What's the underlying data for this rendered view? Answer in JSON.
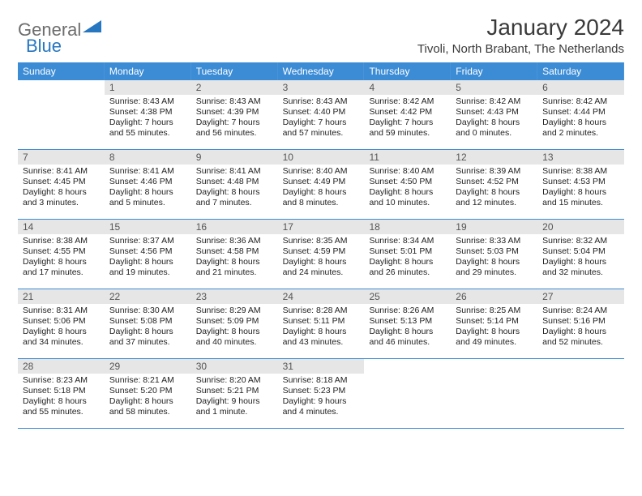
{
  "logo": {
    "general": "General",
    "blue": "Blue"
  },
  "title": "January 2024",
  "subtitle": "Tivoli, North Brabant, The Netherlands",
  "colors": {
    "header_bg": "#3c8cd5",
    "header_text": "#ffffff",
    "daynum_bg": "#e6e6e6",
    "daynum_text": "#555555",
    "body_text": "#222222",
    "cell_border": "#3c8cd5",
    "title_text": "#3a3a3a",
    "logo_gray": "#6d6d6d",
    "logo_blue": "#2676c0",
    "page_bg": "#ffffff"
  },
  "dayNames": [
    "Sunday",
    "Monday",
    "Tuesday",
    "Wednesday",
    "Thursday",
    "Friday",
    "Saturday"
  ],
  "weeks": [
    [
      null,
      {
        "n": "1",
        "sunrise": "8:43 AM",
        "sunset": "4:38 PM",
        "daylight": "7 hours and 55 minutes."
      },
      {
        "n": "2",
        "sunrise": "8:43 AM",
        "sunset": "4:39 PM",
        "daylight": "7 hours and 56 minutes."
      },
      {
        "n": "3",
        "sunrise": "8:43 AM",
        "sunset": "4:40 PM",
        "daylight": "7 hours and 57 minutes."
      },
      {
        "n": "4",
        "sunrise": "8:42 AM",
        "sunset": "4:42 PM",
        "daylight": "7 hours and 59 minutes."
      },
      {
        "n": "5",
        "sunrise": "8:42 AM",
        "sunset": "4:43 PM",
        "daylight": "8 hours and 0 minutes."
      },
      {
        "n": "6",
        "sunrise": "8:42 AM",
        "sunset": "4:44 PM",
        "daylight": "8 hours and 2 minutes."
      }
    ],
    [
      {
        "n": "7",
        "sunrise": "8:41 AM",
        "sunset": "4:45 PM",
        "daylight": "8 hours and 3 minutes."
      },
      {
        "n": "8",
        "sunrise": "8:41 AM",
        "sunset": "4:46 PM",
        "daylight": "8 hours and 5 minutes."
      },
      {
        "n": "9",
        "sunrise": "8:41 AM",
        "sunset": "4:48 PM",
        "daylight": "8 hours and 7 minutes."
      },
      {
        "n": "10",
        "sunrise": "8:40 AM",
        "sunset": "4:49 PM",
        "daylight": "8 hours and 8 minutes."
      },
      {
        "n": "11",
        "sunrise": "8:40 AM",
        "sunset": "4:50 PM",
        "daylight": "8 hours and 10 minutes."
      },
      {
        "n": "12",
        "sunrise": "8:39 AM",
        "sunset": "4:52 PM",
        "daylight": "8 hours and 12 minutes."
      },
      {
        "n": "13",
        "sunrise": "8:38 AM",
        "sunset": "4:53 PM",
        "daylight": "8 hours and 15 minutes."
      }
    ],
    [
      {
        "n": "14",
        "sunrise": "8:38 AM",
        "sunset": "4:55 PM",
        "daylight": "8 hours and 17 minutes."
      },
      {
        "n": "15",
        "sunrise": "8:37 AM",
        "sunset": "4:56 PM",
        "daylight": "8 hours and 19 minutes."
      },
      {
        "n": "16",
        "sunrise": "8:36 AM",
        "sunset": "4:58 PM",
        "daylight": "8 hours and 21 minutes."
      },
      {
        "n": "17",
        "sunrise": "8:35 AM",
        "sunset": "4:59 PM",
        "daylight": "8 hours and 24 minutes."
      },
      {
        "n": "18",
        "sunrise": "8:34 AM",
        "sunset": "5:01 PM",
        "daylight": "8 hours and 26 minutes."
      },
      {
        "n": "19",
        "sunrise": "8:33 AM",
        "sunset": "5:03 PM",
        "daylight": "8 hours and 29 minutes."
      },
      {
        "n": "20",
        "sunrise": "8:32 AM",
        "sunset": "5:04 PM",
        "daylight": "8 hours and 32 minutes."
      }
    ],
    [
      {
        "n": "21",
        "sunrise": "8:31 AM",
        "sunset": "5:06 PM",
        "daylight": "8 hours and 34 minutes."
      },
      {
        "n": "22",
        "sunrise": "8:30 AM",
        "sunset": "5:08 PM",
        "daylight": "8 hours and 37 minutes."
      },
      {
        "n": "23",
        "sunrise": "8:29 AM",
        "sunset": "5:09 PM",
        "daylight": "8 hours and 40 minutes."
      },
      {
        "n": "24",
        "sunrise": "8:28 AM",
        "sunset": "5:11 PM",
        "daylight": "8 hours and 43 minutes."
      },
      {
        "n": "25",
        "sunrise": "8:26 AM",
        "sunset": "5:13 PM",
        "daylight": "8 hours and 46 minutes."
      },
      {
        "n": "26",
        "sunrise": "8:25 AM",
        "sunset": "5:14 PM",
        "daylight": "8 hours and 49 minutes."
      },
      {
        "n": "27",
        "sunrise": "8:24 AM",
        "sunset": "5:16 PM",
        "daylight": "8 hours and 52 minutes."
      }
    ],
    [
      {
        "n": "28",
        "sunrise": "8:23 AM",
        "sunset": "5:18 PM",
        "daylight": "8 hours and 55 minutes."
      },
      {
        "n": "29",
        "sunrise": "8:21 AM",
        "sunset": "5:20 PM",
        "daylight": "8 hours and 58 minutes."
      },
      {
        "n": "30",
        "sunrise": "8:20 AM",
        "sunset": "5:21 PM",
        "daylight": "9 hours and 1 minute."
      },
      {
        "n": "31",
        "sunrise": "8:18 AM",
        "sunset": "5:23 PM",
        "daylight": "9 hours and 4 minutes."
      },
      null,
      null,
      null
    ]
  ],
  "labels": {
    "sunrise": "Sunrise: ",
    "sunset": "Sunset: ",
    "daylight": "Daylight: "
  }
}
